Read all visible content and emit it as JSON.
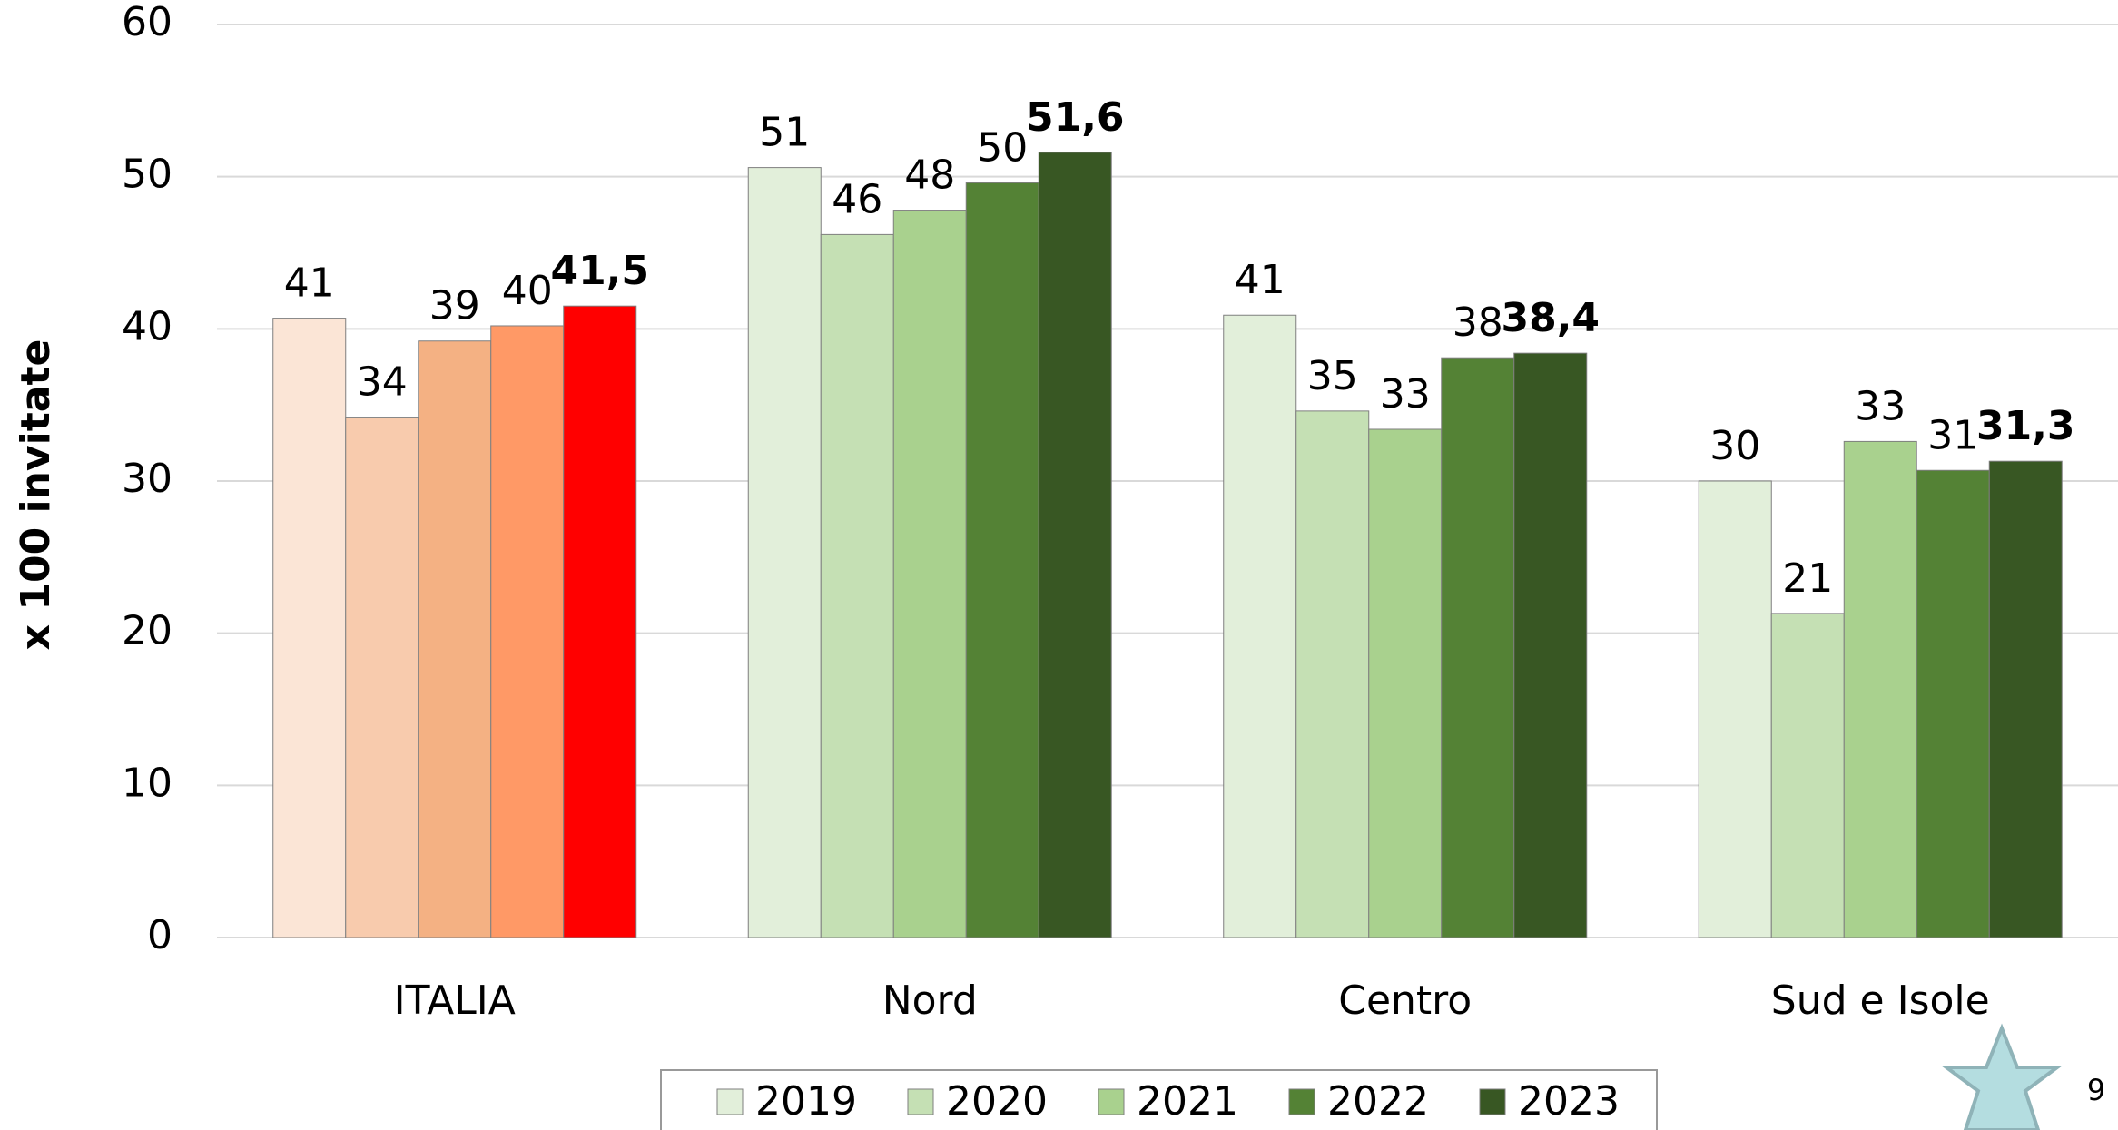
{
  "chart_data": {
    "type": "bar",
    "y_label": "x 100 invitate",
    "categories": [
      "ITALIA",
      "Nord",
      "Centro",
      "Sud e Isole"
    ],
    "ylim": [
      0,
      60
    ],
    "yticks": [
      0,
      10,
      20,
      30,
      40,
      50,
      60
    ],
    "grid": true,
    "legend": "bottom",
    "series": [
      {
        "name": "2019",
        "color": "#e2efda",
        "colors": [
          "#fbe5d6",
          "#e2efda",
          "#e2efda",
          "#e2efda"
        ],
        "values": [
          40.7,
          50.6,
          40.9,
          30.0
        ],
        "value_labels": [
          "41",
          "51",
          "41",
          "30"
        ]
      },
      {
        "name": "2020",
        "color": "#c5e0b4",
        "colors": [
          "#f8cbad",
          "#c5e0b4",
          "#c5e0b4",
          "#c5e0b4"
        ],
        "values": [
          34.2,
          46.2,
          34.6,
          21.3
        ],
        "value_labels": [
          "34",
          "46",
          "35",
          "21"
        ]
      },
      {
        "name": "2021",
        "color": "#a9d18e",
        "colors": [
          "#f4b183",
          "#a9d18e",
          "#a9d18e",
          "#a9d18e"
        ],
        "values": [
          39.2,
          47.8,
          33.4,
          32.6
        ],
        "value_labels": [
          "39",
          "48",
          "33",
          "33"
        ]
      },
      {
        "name": "2022",
        "color": "#548235",
        "colors": [
          "#ff9966",
          "#548235",
          "#548235",
          "#548235"
        ],
        "values": [
          40.2,
          49.6,
          38.1,
          30.7
        ],
        "value_labels": [
          "40",
          "50",
          "38",
          "31"
        ]
      },
      {
        "name": "2023",
        "color": "#385723",
        "colors": [
          "#ff0000",
          "#385723",
          "#385723",
          "#385723"
        ],
        "values": [
          41.5,
          51.6,
          38.4,
          31.3
        ],
        "value_labels": [
          "41,5",
          "51,6",
          "38,4",
          "31,3"
        ],
        "bold": true
      }
    ]
  },
  "page_number": "9"
}
